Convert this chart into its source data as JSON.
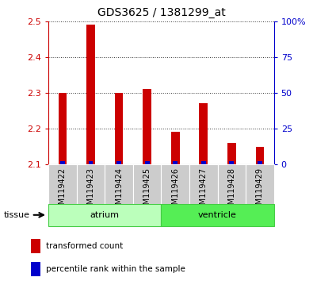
{
  "title": "GDS3625 / 1381299_at",
  "samples": [
    "GSM119422",
    "GSM119423",
    "GSM119424",
    "GSM119425",
    "GSM119426",
    "GSM119427",
    "GSM119428",
    "GSM119429"
  ],
  "transformed_count": [
    2.3,
    2.49,
    2.3,
    2.31,
    2.19,
    2.27,
    2.16,
    2.15
  ],
  "percentile_rank_pct": [
    2.0,
    2.0,
    2.0,
    2.0,
    2.0,
    2.0,
    2.0,
    2.0
  ],
  "baseline": 2.1,
  "ylim_left": [
    2.1,
    2.5
  ],
  "ylim_right": [
    0,
    100
  ],
  "yticks_left": [
    2.1,
    2.2,
    2.3,
    2.4,
    2.5
  ],
  "yticks_right": [
    0,
    25,
    50,
    75,
    100
  ],
  "ytick_labels_right": [
    "0",
    "25",
    "50",
    "75",
    "100%"
  ],
  "red_color": "#cc0000",
  "blue_color": "#0000cc",
  "bar_width": 0.3,
  "tissue_groups": [
    {
      "label": "atrium",
      "start": 0,
      "end": 3,
      "color": "#bbffbb",
      "edge_color": "#44cc44"
    },
    {
      "label": "ventricle",
      "start": 4,
      "end": 7,
      "color": "#55ee55",
      "edge_color": "#44cc44"
    }
  ],
  "sample_bg_color": "#cccccc",
  "grid_color": "#333333",
  "legend_items": [
    {
      "label": "transformed count",
      "color": "#cc0000"
    },
    {
      "label": "percentile rank within the sample",
      "color": "#0000cc"
    }
  ]
}
